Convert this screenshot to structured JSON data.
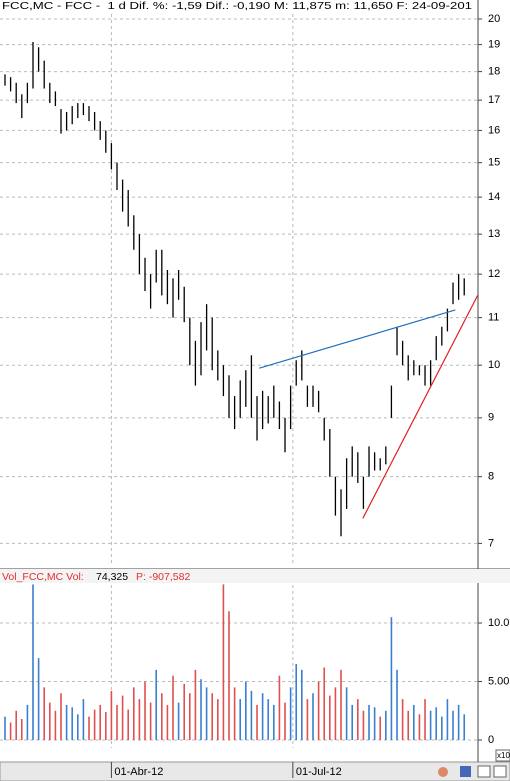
{
  "chart_data": [
    {
      "type": "hl",
      "title": "FCC,MC - FCC -  1 d Dif. %: -1,59 Dif.: -0,190 M: 11,875 m: 11,650 F: 24-09-201",
      "color": "#000000",
      "log": true,
      "grid": true,
      "xlim": [
        -0.893,
        84.46
      ],
      "ylim": [
        6.69,
        20.2
      ],
      "yticks": [
        7,
        8,
        9,
        10,
        11,
        12,
        13,
        14,
        15,
        16,
        17,
        18,
        19,
        20
      ],
      "high": [
        17.9,
        17.8,
        17.6,
        17.2,
        17.6,
        19.1,
        18.9,
        18.4,
        17.6,
        17.3,
        16.7,
        16.6,
        16.8,
        16.9,
        16.9,
        16.8,
        16.6,
        16.3,
        16.0,
        15.6,
        15.0,
        14.5,
        14.2,
        13.5,
        13.0,
        12.4,
        12.0,
        12.6,
        12.6,
        12.1,
        11.9,
        12.1,
        11.7,
        11.0,
        10.5,
        10.9,
        11.3,
        11.0,
        10.3,
        10.0,
        9.8,
        9.4,
        9.7,
        9.9,
        10.2,
        9.4,
        9.5,
        9.4,
        9.6,
        9.3,
        9.0,
        9.6,
        10.1,
        10.3,
        9.6,
        9.6,
        9.5,
        9.0,
        8.8,
        8.0,
        7.8,
        8.3,
        8.5,
        8.4,
        8.0,
        8.5,
        8.4,
        8.3,
        8.5,
        9.6,
        10.8,
        10.5,
        10.2,
        10.1,
        10.0,
        10.0,
        10.1,
        10.6,
        10.8,
        11.2,
        11.8,
        12.0,
        11.9
      ],
      "low": [
        17.5,
        17.3,
        16.9,
        16.4,
        16.9,
        17.4,
        18.0,
        17.4,
        16.9,
        16.8,
        15.9,
        16.0,
        16.2,
        16.4,
        16.5,
        16.3,
        16.0,
        15.7,
        15.3,
        14.8,
        14.2,
        13.6,
        13.2,
        12.6,
        12.0,
        11.6,
        11.2,
        11.8,
        11.5,
        11.3,
        11.0,
        11.4,
        10.9,
        10.0,
        9.6,
        9.8,
        10.3,
        9.9,
        9.7,
        9.4,
        9.0,
        8.8,
        9.0,
        9.2,
        9.0,
        8.6,
        8.8,
        8.9,
        9.0,
        8.8,
        8.4,
        8.8,
        9.6,
        9.7,
        9.2,
        9.2,
        9.1,
        8.6,
        8.0,
        7.4,
        7.1,
        7.5,
        8.0,
        7.9,
        7.5,
        8.0,
        8.1,
        8.1,
        8.2,
        9.0,
        10.2,
        10.0,
        9.7,
        9.8,
        9.8,
        9.6,
        9.6,
        10.1,
        10.4,
        10.7,
        11.3,
        11.4,
        11.5
      ],
      "lines": [
        {
          "color": "#1f6fbf",
          "x": [
            45.4,
            80.4
          ],
          "y": [
            9.94,
            11.17
          ]
        },
        {
          "color": "#e02020",
          "x": [
            63.9,
            84.4
          ],
          "y": [
            7.36,
            11.5
          ]
        }
      ]
    },
    {
      "type": "bar",
      "title": "Vol_FCC,MC Vol:",
      "title_color": "#e03030",
      "last_value": "74,325",
      "p_label": "P: -907,582",
      "up_color": "#3a7fd0",
      "down_color": "#e05050",
      "unit_label": "x10",
      "grid": true,
      "xlim": [
        -0.893,
        84.46
      ],
      "xticks": [
        {
          "value": 19,
          "label": "01-Abr-12"
        },
        {
          "value": 51.4,
          "label": "01-Jul-12"
        }
      ],
      "ylim": [
        -0.68,
        13.25
      ],
      "yticks": [
        0,
        {
          "value": 5,
          "label": "5.00"
        },
        {
          "value": 10,
          "label": "10.0"
        }
      ],
      "values": [
        2.0,
        1.5,
        2.5,
        1.8,
        3.0,
        13.3,
        7.0,
        4.5,
        3.2,
        2.5,
        4.0,
        3.0,
        2.8,
        2.2,
        3.5,
        2.0,
        2.6,
        3.0,
        2.4,
        4.2,
        3.0,
        3.8,
        2.6,
        4.5,
        3.5,
        5.0,
        3.2,
        6.0,
        4.0,
        3.0,
        5.5,
        3.2,
        4.8,
        4.0,
        6.0,
        5.2,
        4.5,
        4.0,
        3.5,
        13.3,
        11.0,
        4.5,
        3.5,
        5.0,
        4.2,
        3.0,
        4.0,
        3.5,
        3.0,
        5.5,
        3.2,
        4.5,
        6.5,
        6.0,
        3.5,
        4.0,
        5.0,
        6.2,
        3.8,
        4.5,
        6.0,
        4.5,
        3.0,
        3.5,
        2.5,
        3.0,
        2.8,
        2.0,
        2.5,
        10.5,
        6.0,
        3.5,
        2.5,
        3.0,
        2.2,
        3.5,
        2.5,
        2.8,
        2.0,
        3.5,
        2.5,
        3.0,
        2.2
      ]
    }
  ]
}
